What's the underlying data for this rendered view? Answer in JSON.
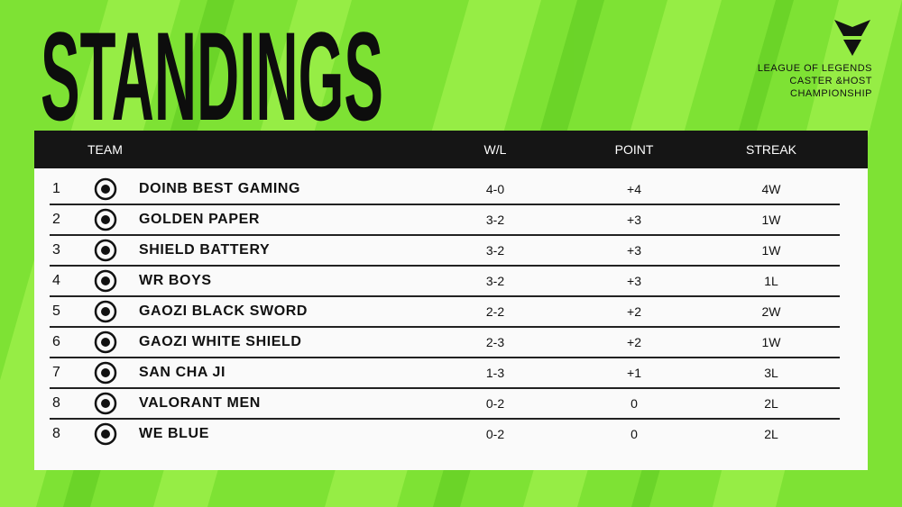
{
  "header": {
    "title": "STANDINGS",
    "brand": [
      "LEAGUE OF LEGENDS",
      "CASTER &HOST",
      "CHAMPIONSHIP"
    ]
  },
  "table": {
    "columns": [
      "TEAM",
      "W/L",
      "POINT",
      "STREAK"
    ],
    "rows": [
      [
        1,
        "DOINB BEST GAMING",
        "4-0",
        "+4",
        "4W"
      ],
      [
        2,
        "GOLDEN PAPER",
        "3-2",
        "+3",
        "1W"
      ],
      [
        3,
        "SHIELD BATTERY",
        "3-2",
        "+3",
        "1W"
      ],
      [
        4,
        "WR BOYS",
        "3-2",
        "+3",
        "1L"
      ],
      [
        5,
        "GAOZI BLACK SWORD",
        "2-2",
        "+2",
        "2W"
      ],
      [
        6,
        "GAOZI WHITE SHIELD",
        "2-3",
        "+2",
        "1W"
      ],
      [
        7,
        "SAN CHA JI",
        "1-3",
        "+1",
        "3L"
      ],
      [
        8,
        "VALORANT MEN",
        "0-2",
        "0",
        "2L"
      ],
      [
        8,
        "WE BLUE",
        "0-2",
        "0",
        "2L"
      ]
    ]
  }
}
